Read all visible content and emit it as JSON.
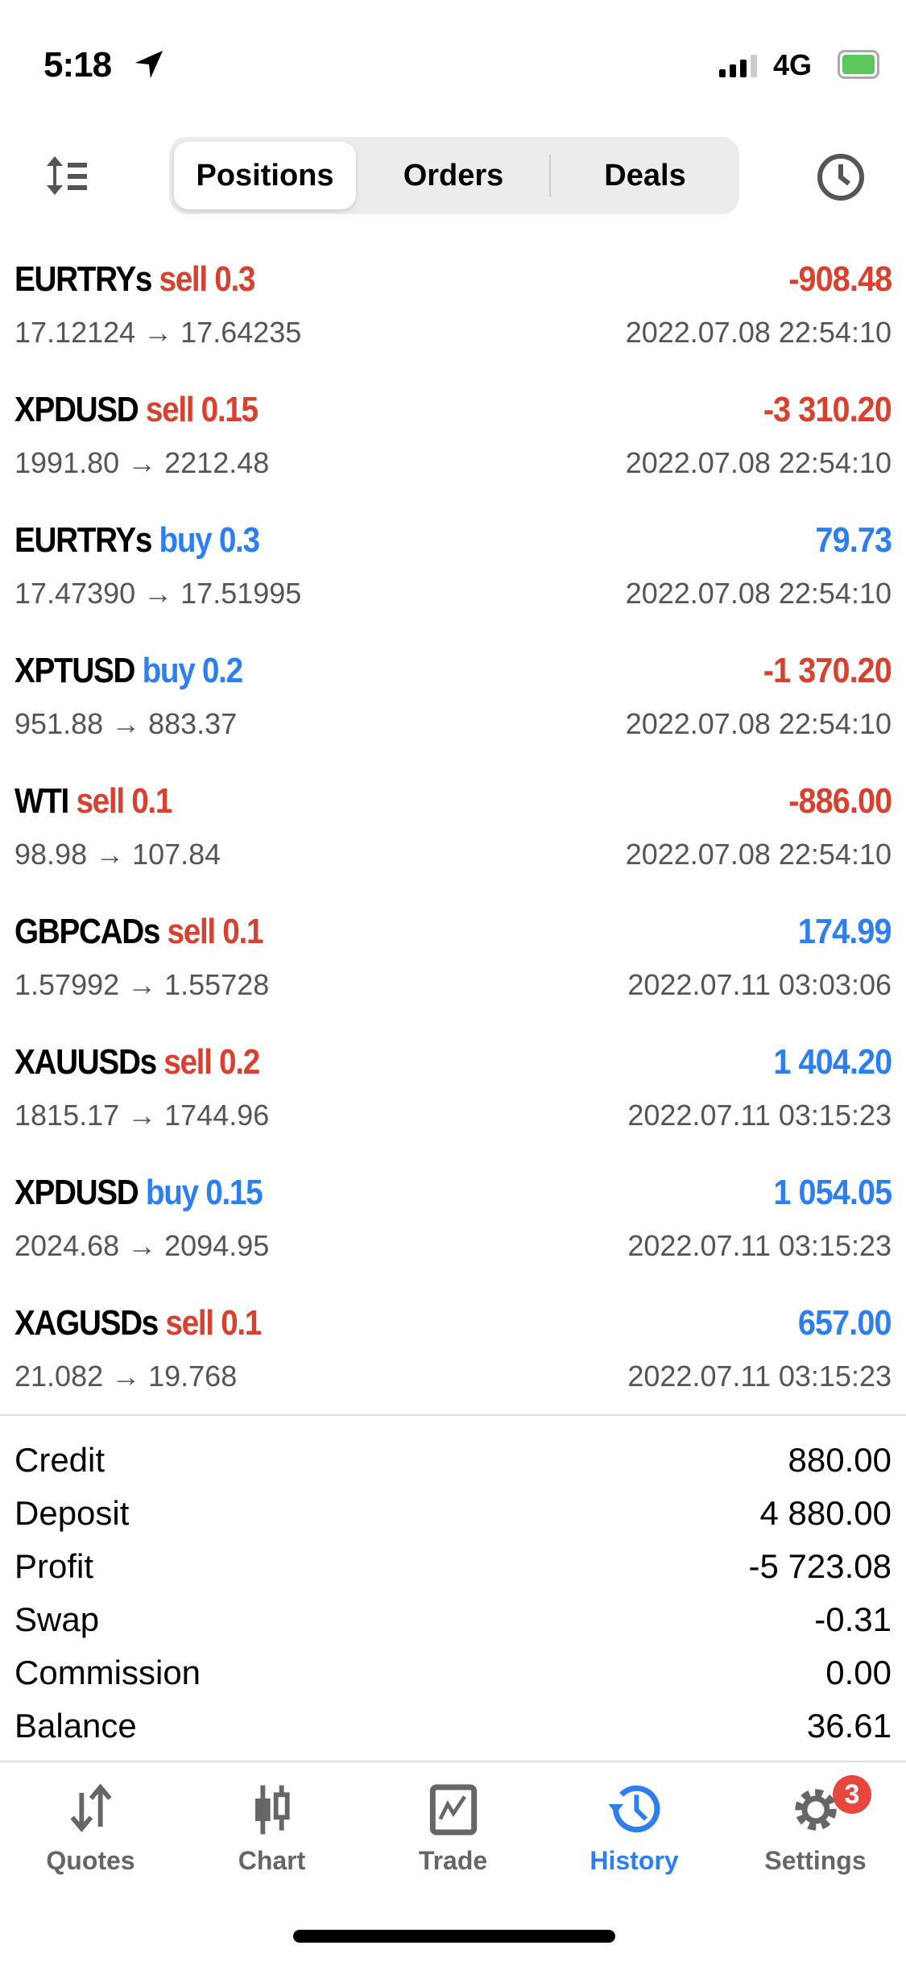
{
  "status_bar": {
    "time": "5:18",
    "network": "4G"
  },
  "header": {
    "tabs": [
      {
        "label": "Positions",
        "active": true
      },
      {
        "label": "Orders",
        "active": false
      },
      {
        "label": "Deals",
        "active": false
      }
    ]
  },
  "positions": [
    {
      "symbol": "EURTRYs",
      "side": "sell",
      "volume": "0.3",
      "prices": "17.12124 → 17.64235",
      "profit": "-908.48",
      "time": "2022.07.08 22:54:10"
    },
    {
      "symbol": "XPDUSD",
      "side": "sell",
      "volume": "0.15",
      "prices": "1991.80 → 2212.48",
      "profit": "-3 310.20",
      "time": "2022.07.08 22:54:10"
    },
    {
      "symbol": "EURTRYs",
      "side": "buy",
      "volume": "0.3",
      "prices": "17.47390 → 17.51995",
      "profit": "79.73",
      "time": "2022.07.08 22:54:10"
    },
    {
      "symbol": "XPTUSD",
      "side": "buy",
      "volume": "0.2",
      "prices": "951.88 → 883.37",
      "profit": "-1 370.20",
      "time": "2022.07.08 22:54:10"
    },
    {
      "symbol": "WTI",
      "side": "sell",
      "volume": "0.1",
      "prices": "98.98 → 107.84",
      "profit": "-886.00",
      "time": "2022.07.08 22:54:10"
    },
    {
      "symbol": "GBPCADs",
      "side": "sell",
      "volume": "0.1",
      "prices": "1.57992 → 1.55728",
      "profit": "174.99",
      "time": "2022.07.11 03:03:06"
    },
    {
      "symbol": "XAUUSDs",
      "side": "sell",
      "volume": "0.2",
      "prices": "1815.17 → 1744.96",
      "profit": "1 404.20",
      "time": "2022.07.11 03:15:23"
    },
    {
      "symbol": "XPDUSD",
      "side": "buy",
      "volume": "0.15",
      "prices": "2024.68 → 2094.95",
      "profit": "1 054.05",
      "time": "2022.07.11 03:15:23"
    },
    {
      "symbol": "XAGUSDs",
      "side": "sell",
      "volume": "0.1",
      "prices": "21.082 → 19.768",
      "profit": "657.00",
      "time": "2022.07.11 03:15:23"
    }
  ],
  "summary": [
    {
      "label": "Credit",
      "value": "880.00"
    },
    {
      "label": "Deposit",
      "value": "4 880.00"
    },
    {
      "label": "Profit",
      "value": "-5 723.08"
    },
    {
      "label": "Swap",
      "value": "-0.31"
    },
    {
      "label": "Commission",
      "value": "0.00"
    },
    {
      "label": "Balance",
      "value": "36.61"
    }
  ],
  "tabbar": {
    "items": [
      {
        "label": "Quotes"
      },
      {
        "label": "Chart"
      },
      {
        "label": "Trade"
      },
      {
        "label": "History",
        "active": true
      },
      {
        "label": "Settings"
      }
    ],
    "settings_badge": "3"
  },
  "colors": {
    "sell": "#d8412f",
    "buy": "#2d7ff0",
    "active_tab": "#2d7ff0"
  }
}
